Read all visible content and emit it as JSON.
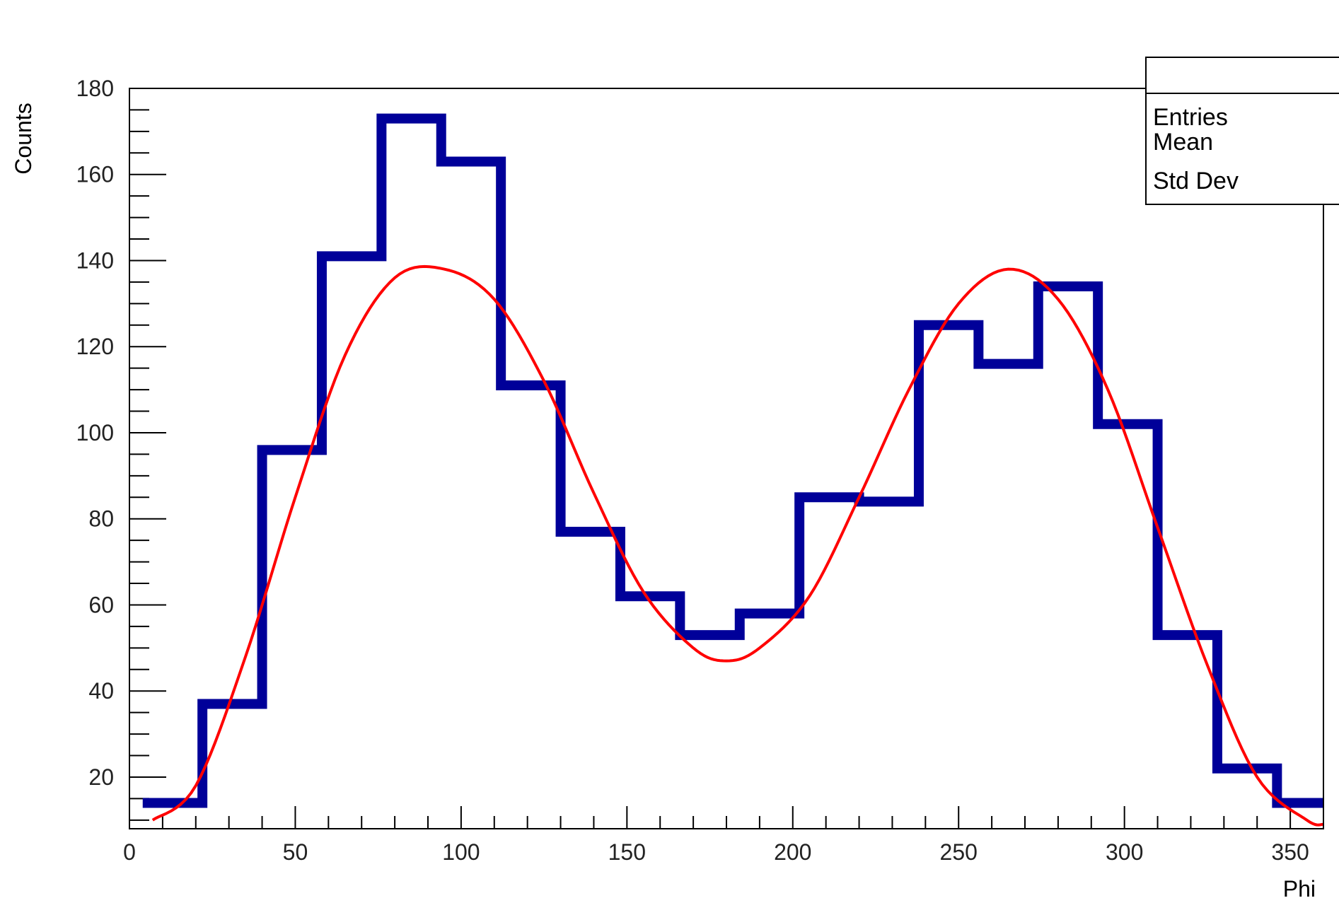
{
  "chart_data": {
    "type": "histogram",
    "xlabel": "Phi",
    "ylabel": "Counts",
    "xlim": [
      0,
      360
    ],
    "ylim": [
      8,
      180
    ],
    "x_ticks": [
      0,
      50,
      100,
      150,
      200,
      250,
      300,
      350
    ],
    "y_ticks": [
      20,
      40,
      60,
      80,
      100,
      120,
      140,
      160,
      180
    ],
    "bin_edges": [
      4,
      22,
      40,
      58,
      76,
      94,
      112,
      130,
      148,
      166,
      184,
      202,
      220,
      238,
      256,
      274,
      292,
      310,
      328,
      346,
      364
    ],
    "series": [
      {
        "kind": "histogram",
        "color": "#000099",
        "values": [
          14,
          37,
          96,
          141,
          173,
          163,
          111,
          77,
          62,
          53,
          58,
          85,
          84,
          125,
          116,
          134,
          102,
          53,
          22,
          14
        ]
      },
      {
        "kind": "fit-curve",
        "color": "#ff0000",
        "points": [
          [
            7,
            10
          ],
          [
            20,
            18
          ],
          [
            35,
            48
          ],
          [
            50,
            85
          ],
          [
            65,
            118
          ],
          [
            80,
            136
          ],
          [
            95,
            138
          ],
          [
            110,
            131
          ],
          [
            125,
            112
          ],
          [
            140,
            86
          ],
          [
            155,
            63
          ],
          [
            170,
            50
          ],
          [
            180,
            47
          ],
          [
            190,
            50
          ],
          [
            205,
            62
          ],
          [
            220,
            85
          ],
          [
            235,
            110
          ],
          [
            250,
            130
          ],
          [
            265,
            138
          ],
          [
            280,
            131
          ],
          [
            295,
            110
          ],
          [
            310,
            78
          ],
          [
            325,
            46
          ],
          [
            340,
            20
          ],
          [
            355,
            10
          ],
          [
            360,
            9
          ]
        ]
      }
    ],
    "grid": false,
    "stats_box": {
      "position": "top-right",
      "labels": [
        "Entries",
        "Mean",
        "Std Dev"
      ]
    }
  }
}
